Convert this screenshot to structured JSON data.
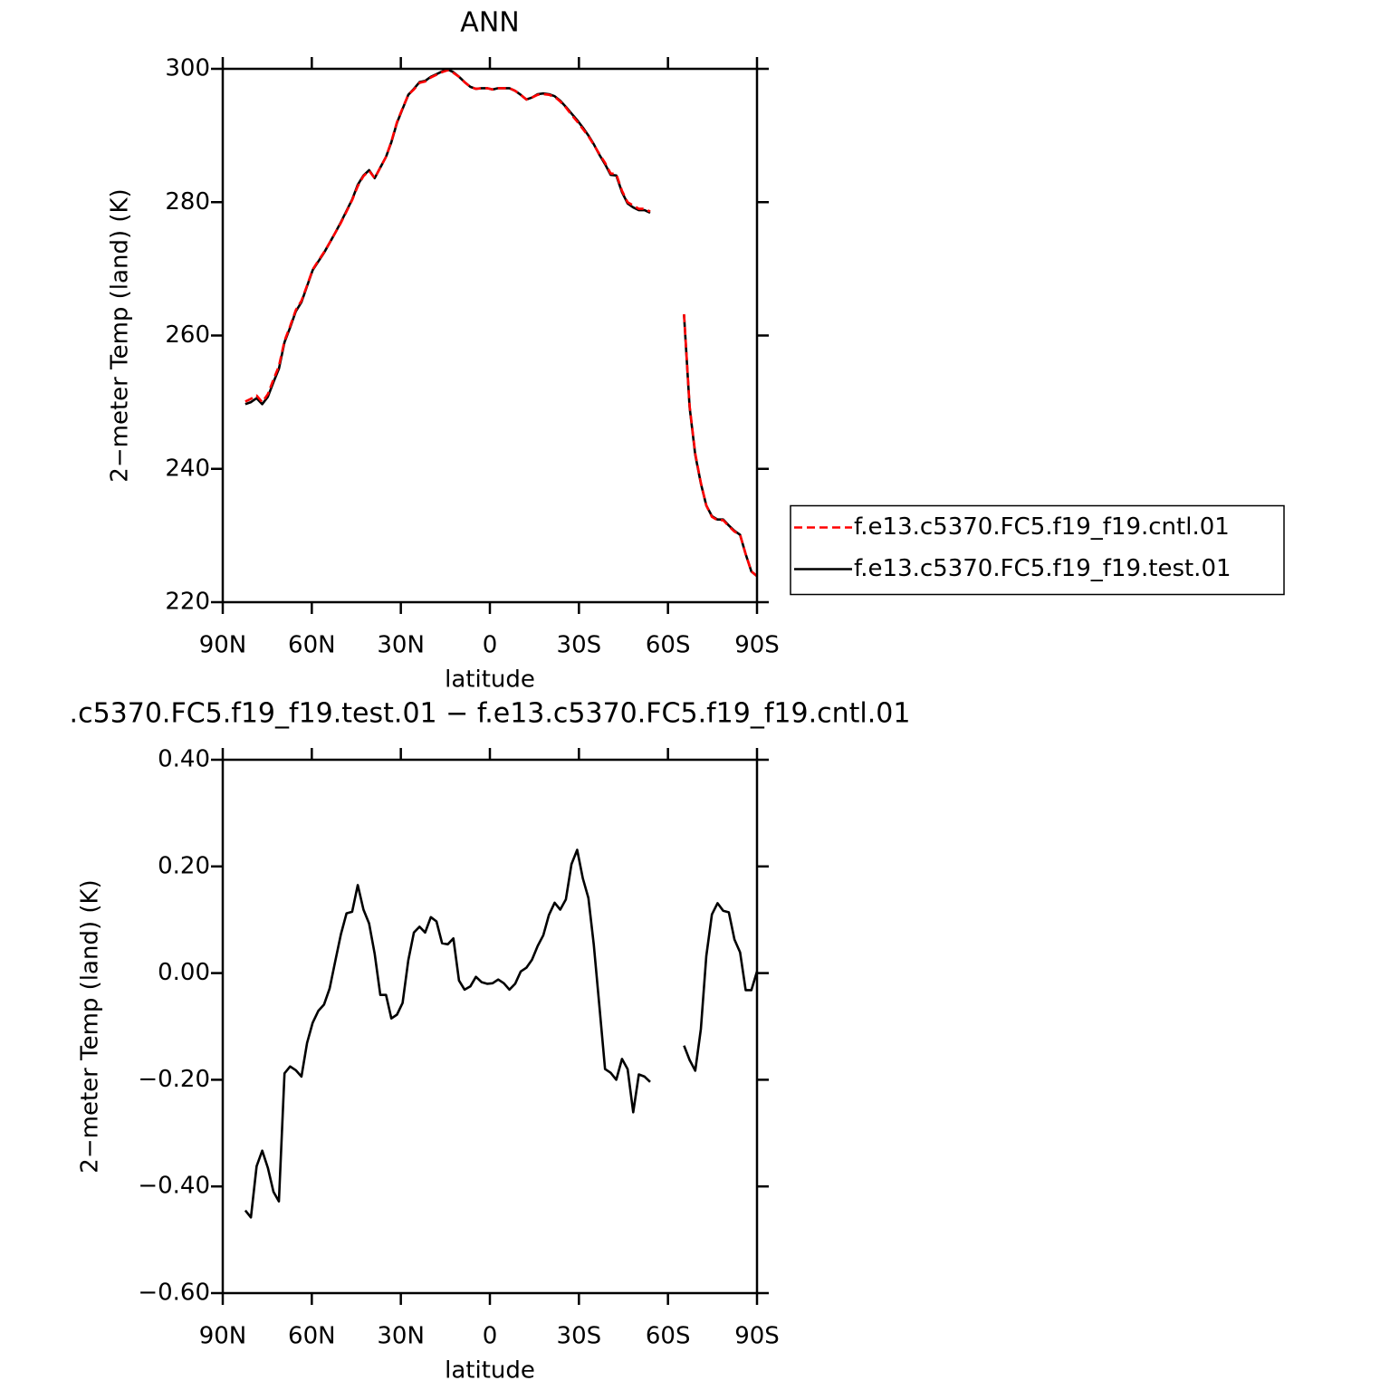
{
  "chart_data": [
    {
      "type": "line",
      "title": "ANN",
      "xlabel": "latitude",
      "ylabel": "2−meter Temp (land) (K)",
      "x": [
        82.4,
        80.5,
        78.6,
        76.7,
        74.8,
        72.9,
        71.1,
        69.2,
        67.3,
        65.4,
        63.5,
        61.6,
        59.7,
        57.8,
        55.9,
        54.0,
        52.1,
        50.2,
        48.3,
        46.4,
        44.5,
        42.6,
        40.7,
        38.8,
        36.9,
        35.0,
        33.2,
        31.3,
        29.4,
        27.5,
        25.6,
        23.7,
        21.8,
        19.9,
        18.0,
        16.1,
        14.2,
        12.3,
        10.4,
        8.5,
        6.6,
        4.7,
        2.8,
        0.9,
        -0.9,
        -2.8,
        -4.7,
        -6.6,
        -8.5,
        -10.4,
        -12.3,
        -14.2,
        -16.1,
        -18.0,
        -19.9,
        -21.8,
        -23.7,
        -25.6,
        -27.5,
        -29.4,
        -31.3,
        -33.2,
        -35.0,
        -36.9,
        -38.8,
        -40.7,
        -42.6,
        -44.5,
        -46.4,
        -48.3,
        -50.2,
        -52.1,
        -54.0,
        -55.9,
        -57.8,
        -59.7,
        -61.6,
        -63.5,
        -65.4,
        -67.3,
        -69.2,
        -71.1,
        -72.9,
        -74.8,
        -76.7,
        -78.6,
        -80.5,
        -82.4,
        -84.3,
        -86.2,
        -88.1,
        -90.0
      ],
      "xlim": [
        90,
        -90
      ],
      "xticks": [
        {
          "value": 90,
          "label": "90N"
        },
        {
          "value": 60,
          "label": "60N"
        },
        {
          "value": 30,
          "label": "30N"
        },
        0,
        {
          "value": -30,
          "label": "30S"
        },
        {
          "value": -60,
          "label": "60S"
        },
        {
          "value": -90,
          "label": "90S"
        }
      ],
      "ylim": [
        220,
        300
      ],
      "yticks": [
        220,
        240,
        260,
        280,
        300
      ],
      "legend": "right",
      "series": [
        {
          "name": "f.e13.c5370.FC5.f19_f19.cntl.01",
          "color": "#ff0000",
          "dashed": true,
          "values": [
            250.1,
            250.5,
            251.0,
            250.0,
            251.2,
            253.4,
            255.4,
            259.2,
            261.4,
            263.8,
            265.2,
            267.5,
            269.9,
            271.2,
            272.5,
            273.9,
            275.4,
            276.9,
            278.6,
            280.3,
            282.4,
            283.9,
            284.7,
            283.6,
            285.2,
            286.8,
            289.1,
            292.0,
            294.1,
            296.1,
            296.9,
            297.9,
            298.1,
            298.7,
            299.1,
            299.5,
            299.8,
            299.4,
            298.8,
            298.0,
            297.3,
            297.0,
            297.1,
            297.1,
            296.9,
            297.1,
            297.1,
            297.1,
            296.7,
            296.1,
            295.4,
            295.7,
            296.1,
            296.2,
            296.1,
            295.8,
            295.1,
            294.2,
            293.1,
            292.1,
            291.0,
            289.9,
            288.6,
            287.2,
            285.9,
            284.3,
            284.2,
            281.7,
            280.0,
            279.5,
            279.0,
            279.0,
            278.6,
            null,
            null,
            null,
            null,
            null,
            263.2,
            249.4,
            242.3,
            237.9,
            234.5,
            232.8,
            232.3,
            232.3,
            231.4,
            230.6,
            230.1,
            227.2,
            224.6,
            223.9
          ]
        },
        {
          "name": "f.e13.c5370.FC5.f19_f19.test.01",
          "color": "#000000",
          "dashed": false,
          "values": [
            249.7,
            250.0,
            250.6,
            249.7,
            250.8,
            253.0,
            255.0,
            259.0,
            261.2,
            263.6,
            265.0,
            267.4,
            269.8,
            271.1,
            272.4,
            273.9,
            275.4,
            277.0,
            278.7,
            280.4,
            282.6,
            284.0,
            284.8,
            283.6,
            285.2,
            286.8,
            289.0,
            291.9,
            294.0,
            296.1,
            297.0,
            298.0,
            298.2,
            298.8,
            299.2,
            299.6,
            299.9,
            299.5,
            298.8,
            298.0,
            297.3,
            297.0,
            297.1,
            297.1,
            296.9,
            297.1,
            297.1,
            297.1,
            296.7,
            296.1,
            295.4,
            295.7,
            296.2,
            296.3,
            296.2,
            295.9,
            295.2,
            294.3,
            293.3,
            292.3,
            291.2,
            290.0,
            288.7,
            287.1,
            285.7,
            284.1,
            284.0,
            281.5,
            279.8,
            279.2,
            278.8,
            278.8,
            278.4,
            null,
            null,
            null,
            null,
            null,
            263.1,
            249.2,
            242.1,
            237.8,
            234.5,
            232.9,
            232.4,
            232.4,
            231.5,
            230.7,
            230.1,
            227.2,
            224.6,
            223.9
          ]
        }
      ]
    },
    {
      "type": "line",
      "title": ".c5370.FC5.f19_f19.test.01 − f.e13.c5370.FC5.f19_f19.cntl.01",
      "xlabel": "latitude",
      "ylabel": "2−meter Temp (land) (K)",
      "x": [
        82.4,
        80.5,
        78.6,
        76.7,
        74.8,
        72.9,
        71.1,
        69.2,
        67.3,
        65.4,
        63.5,
        61.6,
        59.7,
        57.8,
        55.9,
        54.0,
        52.1,
        50.2,
        48.3,
        46.4,
        44.5,
        42.6,
        40.7,
        38.8,
        36.9,
        35.0,
        33.2,
        31.3,
        29.4,
        27.5,
        25.6,
        23.7,
        21.8,
        19.9,
        18.0,
        16.1,
        14.2,
        12.3,
        10.4,
        8.5,
        6.6,
        4.7,
        2.8,
        0.9,
        -0.9,
        -2.8,
        -4.7,
        -6.6,
        -8.5,
        -10.4,
        -12.3,
        -14.2,
        -16.1,
        -18.0,
        -19.9,
        -21.8,
        -23.7,
        -25.6,
        -27.5,
        -29.4,
        -31.3,
        -33.2,
        -35.0,
        -36.9,
        -38.8,
        -40.7,
        -42.6,
        -44.5,
        -46.4,
        -48.3,
        -50.2,
        -52.1,
        -54.0,
        -55.9,
        -57.8,
        -59.7,
        -61.6,
        -63.5,
        -65.4,
        -67.3,
        -69.2,
        -71.1,
        -72.9,
        -74.8,
        -76.7,
        -78.6,
        -80.5,
        -82.4,
        -84.3,
        -86.2,
        -88.1,
        -90.0
      ],
      "xlim": [
        90,
        -90
      ],
      "xticks": [
        {
          "value": 90,
          "label": "90N"
        },
        {
          "value": 60,
          "label": "60N"
        },
        {
          "value": 30,
          "label": "30N"
        },
        0,
        {
          "value": -30,
          "label": "30S"
        },
        {
          "value": -60,
          "label": "60S"
        },
        {
          "value": -90,
          "label": "90S"
        }
      ],
      "ylim": [
        -0.6,
        0.4
      ],
      "yticks": [
        {
          "value": -0.6,
          "label": "−0.60"
        },
        {
          "value": -0.4,
          "label": "−0.40"
        },
        {
          "value": -0.2,
          "label": "−0.20"
        },
        {
          "value": 0,
          "label": "0.00"
        },
        {
          "value": 0.2,
          "label": "0.20"
        },
        {
          "value": 0.4,
          "label": "0.40"
        }
      ],
      "series": [
        {
          "color": "#000000",
          "dashed": false,
          "values": [
            -0.445,
            -0.458,
            -0.362,
            -0.333,
            -0.365,
            -0.41,
            -0.428,
            -0.188,
            -0.175,
            -0.182,
            -0.194,
            -0.131,
            -0.093,
            -0.071,
            -0.059,
            -0.029,
            0.022,
            0.073,
            0.112,
            0.115,
            0.165,
            0.119,
            0.093,
            0.036,
            -0.041,
            -0.041,
            -0.085,
            -0.078,
            -0.056,
            0.024,
            0.076,
            0.087,
            0.076,
            0.105,
            0.097,
            0.056,
            0.054,
            0.065,
            -0.014,
            -0.031,
            -0.025,
            -0.007,
            -0.017,
            -0.02,
            -0.019,
            -0.012,
            -0.019,
            -0.031,
            -0.02,
            0.003,
            0.01,
            0.025,
            0.051,
            0.071,
            0.109,
            0.132,
            0.119,
            0.138,
            0.204,
            0.231,
            0.178,
            0.141,
            0.054,
            -0.063,
            -0.18,
            -0.187,
            -0.2,
            -0.161,
            -0.18,
            -0.261,
            -0.19,
            -0.194,
            -0.204,
            null,
            null,
            null,
            null,
            null,
            -0.136,
            -0.163,
            -0.183,
            -0.105,
            0.032,
            0.11,
            0.131,
            0.117,
            0.114,
            0.063,
            0.039,
            -0.032,
            -0.032,
            0.003
          ]
        }
      ]
    }
  ]
}
